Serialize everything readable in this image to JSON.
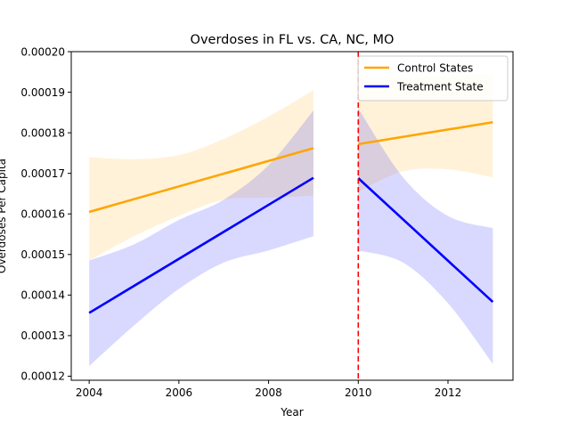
{
  "chart_data": {
    "type": "line",
    "title": "Overdoses in FL vs. CA, NC, MO",
    "xlabel": "Year",
    "ylabel": "Overdoses Per Capita",
    "xlim": [
      2003.6,
      2013.45
    ],
    "ylim": [
      0.000119,
      0.0002
    ],
    "xticks": [
      2004,
      2006,
      2008,
      2010,
      2012
    ],
    "xtick_labels": [
      "2004",
      "2006",
      "2008",
      "2010",
      "2012"
    ],
    "yticks": [
      0.00012,
      0.00013,
      0.00014,
      0.00015,
      0.00016,
      0.00017,
      0.00018,
      0.00019,
      0.0002
    ],
    "ytick_labels": [
      "0.00012",
      "0.00013",
      "0.00014",
      "0.00015",
      "0.00016",
      "0.00017",
      "0.00018",
      "0.00019",
      "0.00020"
    ],
    "grid": false,
    "legend_position": "top-right",
    "vline": {
      "x": 2010,
      "color": "#ff0000",
      "style": "dashed"
    },
    "series": [
      {
        "name": "Control States",
        "color": "#ffa500",
        "band_color": "#ffa500",
        "segments": [
          {
            "x": [
              2004,
              2009
            ],
            "y": [
              0.0001605,
              0.0001762
            ],
            "band_x": [
              2004,
              2005,
              2006,
              2007,
              2008,
              2009
            ],
            "band_upper": [
              0.000174,
              0.0001735,
              0.0001745,
              0.0001785,
              0.000184,
              0.0001905
            ],
            "band_lower": [
              0.0001485,
              0.0001545,
              0.0001595,
              0.0001635,
              0.000164,
              0.0001645
            ]
          },
          {
            "x": [
              2010,
              2013
            ],
            "y": [
              0.0001772,
              0.0001826
            ],
            "band_x": [
              2010,
              2011,
              2012,
              2013
            ],
            "band_upper": [
              0.0001935,
              0.0001935,
              0.000194,
              0.0001945
            ],
            "band_lower": [
              0.0001655,
              0.0001705,
              0.000171,
              0.000169
            ]
          }
        ]
      },
      {
        "name": "Treatment State",
        "color": "#0000ff",
        "band_color": "#0000ff",
        "segments": [
          {
            "x": [
              2004,
              2009
            ],
            "y": [
              0.0001356,
              0.0001689
            ],
            "band_x": [
              2004,
              2005,
              2006,
              2007,
              2008,
              2009
            ],
            "band_upper": [
              0.0001485,
              0.0001525,
              0.0001585,
              0.0001635,
              0.000172,
              0.0001855
            ],
            "band_lower": [
              0.0001225,
              0.0001325,
              0.0001415,
              0.000148,
              0.000151,
              0.0001545
            ]
          },
          {
            "x": [
              2010,
              2013
            ],
            "y": [
              0.0001688,
              0.0001383
            ],
            "band_x": [
              2010,
              2011,
              2012,
              2013
            ],
            "band_upper": [
              0.000186,
              0.000169,
              0.0001595,
              0.0001565
            ],
            "band_lower": [
              0.000151,
              0.000148,
              0.000138,
              0.000123
            ]
          }
        ]
      }
    ]
  }
}
